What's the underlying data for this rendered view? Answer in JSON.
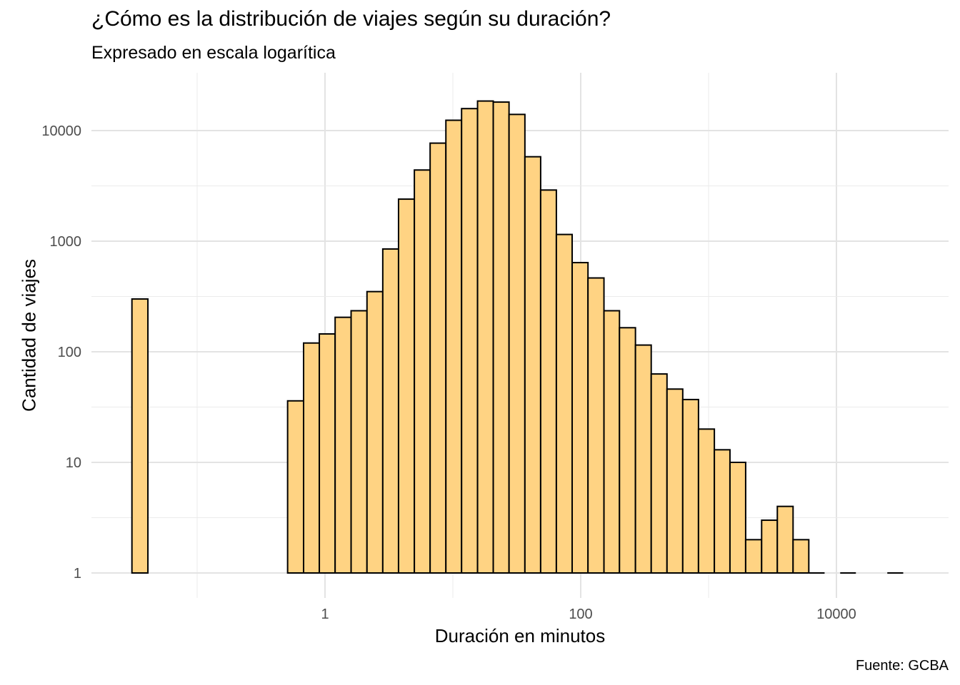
{
  "title": "¿Cómo es la distribución de viajes según su duración?",
  "subtitle": "Expresado en escala logarítica",
  "caption": "Fuente: GCBA",
  "chart_data": {
    "type": "bar",
    "title": "¿Cómo es la distribución de viajes según su duración?",
    "subtitle": "Expresado en escala logarítica",
    "xlabel": "Duración en minutos",
    "ylabel": "Cantidad de viajes",
    "x_scale": "log10",
    "y_scale": "log10",
    "xlim": [
      0.02,
      60000
    ],
    "ylim": [
      0.67,
      28000
    ],
    "x_ticks": [
      "1",
      "100",
      "10000"
    ],
    "y_ticks": [
      "1",
      "10",
      "100",
      "1000",
      "10000"
    ],
    "grid": true,
    "bar_fill": "#FFD383",
    "bar_outline": "#000000",
    "bin_width_log10": 0.124,
    "bins": [
      {
        "x_start": 0.0309,
        "x_end": 0.0412,
        "count": 300
      },
      {
        "x_start": 0.51,
        "x_end": 0.68,
        "count": 36
      },
      {
        "x_start": 0.68,
        "x_end": 0.903,
        "count": 120
      },
      {
        "x_start": 0.903,
        "x_end": 1.2,
        "count": 145
      },
      {
        "x_start": 1.2,
        "x_end": 1.6,
        "count": 205
      },
      {
        "x_start": 1.6,
        "x_end": 2.13,
        "count": 235
      },
      {
        "x_start": 2.13,
        "x_end": 2.83,
        "count": 350
      },
      {
        "x_start": 2.83,
        "x_end": 3.76,
        "count": 850
      },
      {
        "x_start": 3.76,
        "x_end": 5.0,
        "count": 2400
      },
      {
        "x_start": 5.0,
        "x_end": 6.64,
        "count": 4400
      },
      {
        "x_start": 6.64,
        "x_end": 8.82,
        "count": 7700
      },
      {
        "x_start": 8.82,
        "x_end": 11.7,
        "count": 12400
      },
      {
        "x_start": 11.7,
        "x_end": 15.6,
        "count": 15800
      },
      {
        "x_start": 15.6,
        "x_end": 20.7,
        "count": 18500
      },
      {
        "x_start": 20.7,
        "x_end": 27.5,
        "count": 18100
      },
      {
        "x_start": 27.5,
        "x_end": 36.6,
        "count": 14000
      },
      {
        "x_start": 36.6,
        "x_end": 48.6,
        "count": 5800
      },
      {
        "x_start": 48.6,
        "x_end": 64.5,
        "count": 2900
      },
      {
        "x_start": 64.5,
        "x_end": 85.7,
        "count": 1150
      },
      {
        "x_start": 85.7,
        "x_end": 114,
        "count": 640
      },
      {
        "x_start": 114,
        "x_end": 152,
        "count": 465
      },
      {
        "x_start": 152,
        "x_end": 201,
        "count": 235
      },
      {
        "x_start": 201,
        "x_end": 268,
        "count": 165
      },
      {
        "x_start": 268,
        "x_end": 356,
        "count": 115
      },
      {
        "x_start": 356,
        "x_end": 473,
        "count": 63
      },
      {
        "x_start": 473,
        "x_end": 628,
        "count": 46
      },
      {
        "x_start": 628,
        "x_end": 834,
        "count": 37
      },
      {
        "x_start": 834,
        "x_end": 1110,
        "count": 20
      },
      {
        "x_start": 1110,
        "x_end": 1470,
        "count": 13
      },
      {
        "x_start": 1470,
        "x_end": 1950,
        "count": 10
      },
      {
        "x_start": 1950,
        "x_end": 2600,
        "count": 2
      },
      {
        "x_start": 2600,
        "x_end": 3450,
        "count": 3
      },
      {
        "x_start": 3450,
        "x_end": 4580,
        "count": 4
      },
      {
        "x_start": 4580,
        "x_end": 6080,
        "count": 2
      },
      {
        "x_start": 6080,
        "x_end": 8080,
        "count": 1
      },
      {
        "x_start": 10700,
        "x_end": 14200,
        "count": 1
      },
      {
        "x_start": 25000,
        "x_end": 33300,
        "count": 1
      }
    ]
  }
}
